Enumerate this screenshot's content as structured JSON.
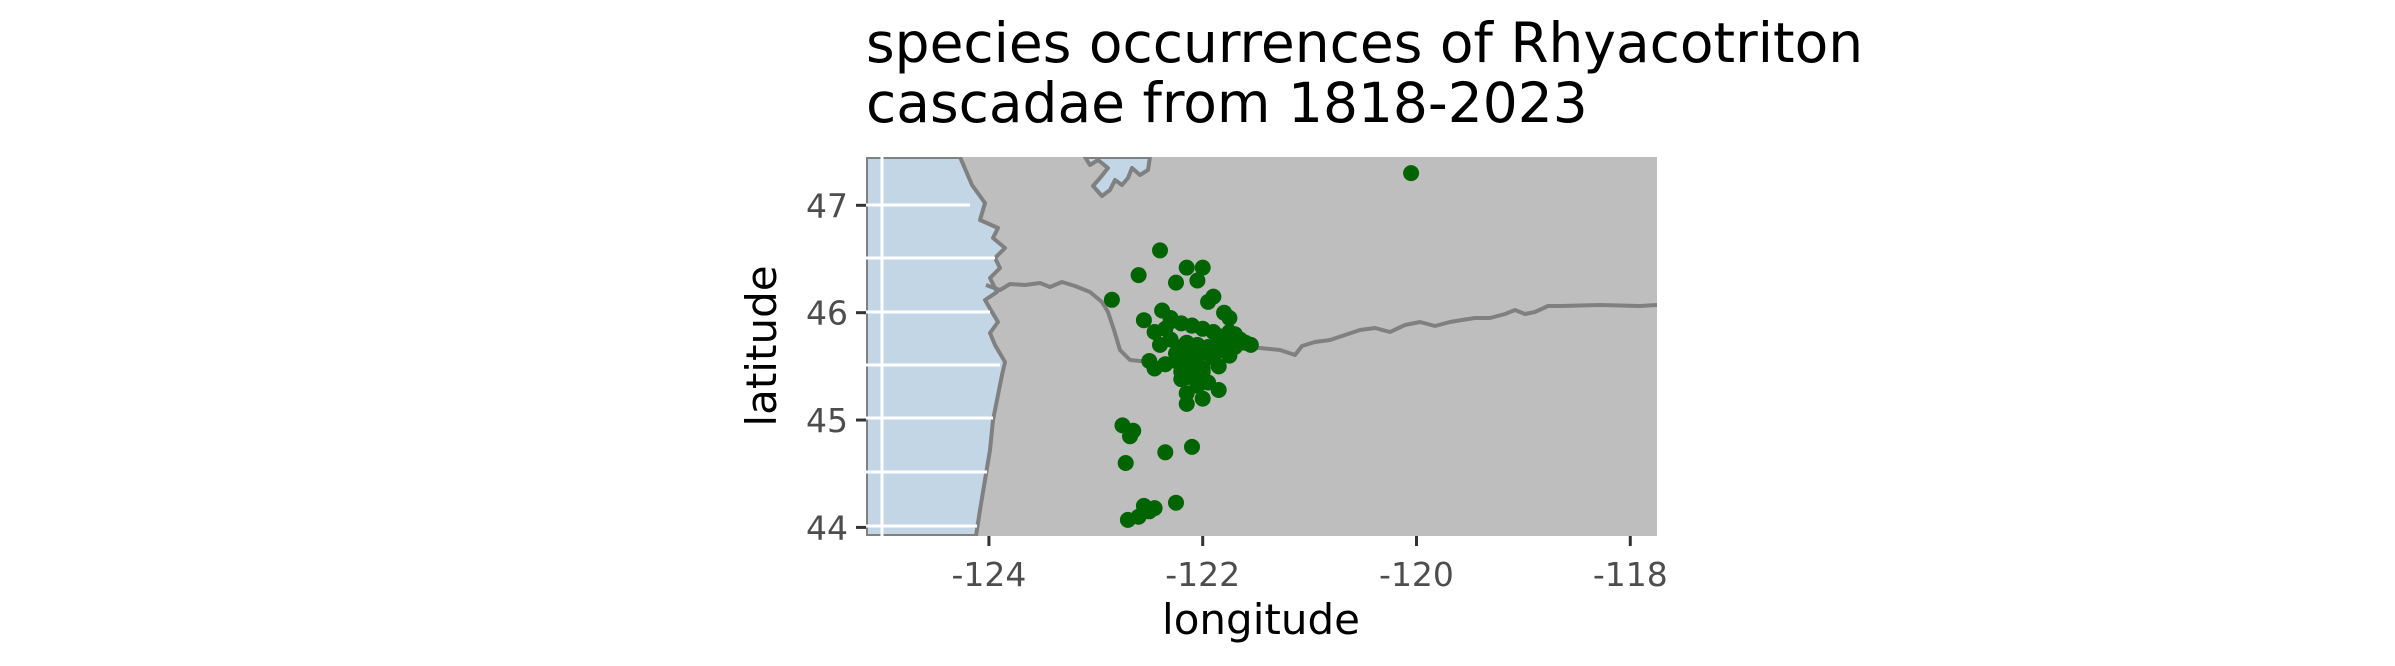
{
  "title_lines": [
    "species occurrences of Rhyacotriton",
    "cascadae from 1818-2023"
  ],
  "x_axis": {
    "label": "longitude",
    "ticks": [
      {
        "value": -124,
        "label": "-124"
      },
      {
        "value": -122,
        "label": "-122"
      },
      {
        "value": -120,
        "label": "-120"
      },
      {
        "value": -118,
        "label": "-118"
      }
    ]
  },
  "y_axis": {
    "label": "latitude",
    "ticks": [
      {
        "value": 47,
        "label": "47"
      },
      {
        "value": 46,
        "label": "46"
      },
      {
        "value": 45,
        "label": "45"
      },
      {
        "value": 44,
        "label": "44"
      }
    ]
  },
  "colors": {
    "land": "#bebebe",
    "ocean": "#c2d6e6",
    "border": "#808080",
    "point": "#006400",
    "grid": "#ffffff",
    "tick_text": "#4d4d4d"
  },
  "chart_data": {
    "type": "scatter",
    "xlim": [
      -125.15,
      -117.75
    ],
    "ylim": [
      43.92,
      47.45
    ],
    "grid": true,
    "x": [
      -120.05,
      -122.85,
      -122.4,
      -122.6,
      -122.55,
      -122.38,
      -122.3,
      -122.35,
      -122.45,
      -122.15,
      -122.0,
      -122.05,
      -121.9,
      -121.95,
      -121.8,
      -121.75,
      -122.25,
      -122.2,
      -122.1,
      -122.0,
      -121.9,
      -121.85,
      -121.7,
      -121.65,
      -121.6,
      -121.55,
      -121.8,
      -121.7,
      -122.3,
      -122.4,
      -122.2,
      -122.1,
      -122.15,
      -122.05,
      -121.95,
      -121.9,
      -121.85,
      -121.75,
      -122.25,
      -122.15,
      -122.35,
      -122.5,
      -122.1,
      -122.2,
      -122.0,
      -121.85,
      -122.15,
      -122.05,
      -122.1,
      -121.95,
      -122.2,
      -122.05,
      -121.85,
      -122.0,
      -122.15,
      -122.25,
      -122.05,
      -121.95,
      -121.8,
      -121.65,
      -121.75,
      -122.1,
      -122.3,
      -122.45,
      -122.15,
      -122.0,
      -122.1,
      -122.75,
      -122.65,
      -122.68,
      -122.35,
      -122.1,
      -122.72,
      -122.55,
      -122.5,
      -122.45,
      -122.25,
      -122.7,
      -122.6
    ],
    "y": [
      47.3,
      46.12,
      46.58,
      46.35,
      45.93,
      46.02,
      45.95,
      45.85,
      45.82,
      46.42,
      46.42,
      46.3,
      46.15,
      46.1,
      46.0,
      45.95,
      46.28,
      45.9,
      45.88,
      45.85,
      45.82,
      45.78,
      45.8,
      45.75,
      45.72,
      45.7,
      45.72,
      45.68,
      45.75,
      45.7,
      45.68,
      45.65,
      45.72,
      45.6,
      45.62,
      45.58,
      45.65,
      45.6,
      45.62,
      45.55,
      45.52,
      45.55,
      45.5,
      45.45,
      45.48,
      45.5,
      45.4,
      45.38,
      45.42,
      45.35,
      45.38,
      45.32,
      45.28,
      45.45,
      45.25,
      45.55,
      45.7,
      45.68,
      45.78,
      45.72,
      45.82,
      45.88,
      45.92,
      45.48,
      45.15,
      45.2,
      45.6,
      44.95,
      44.9,
      44.85,
      44.7,
      44.75,
      44.6,
      44.2,
      44.15,
      44.18,
      44.23,
      44.07,
      44.1
    ]
  }
}
